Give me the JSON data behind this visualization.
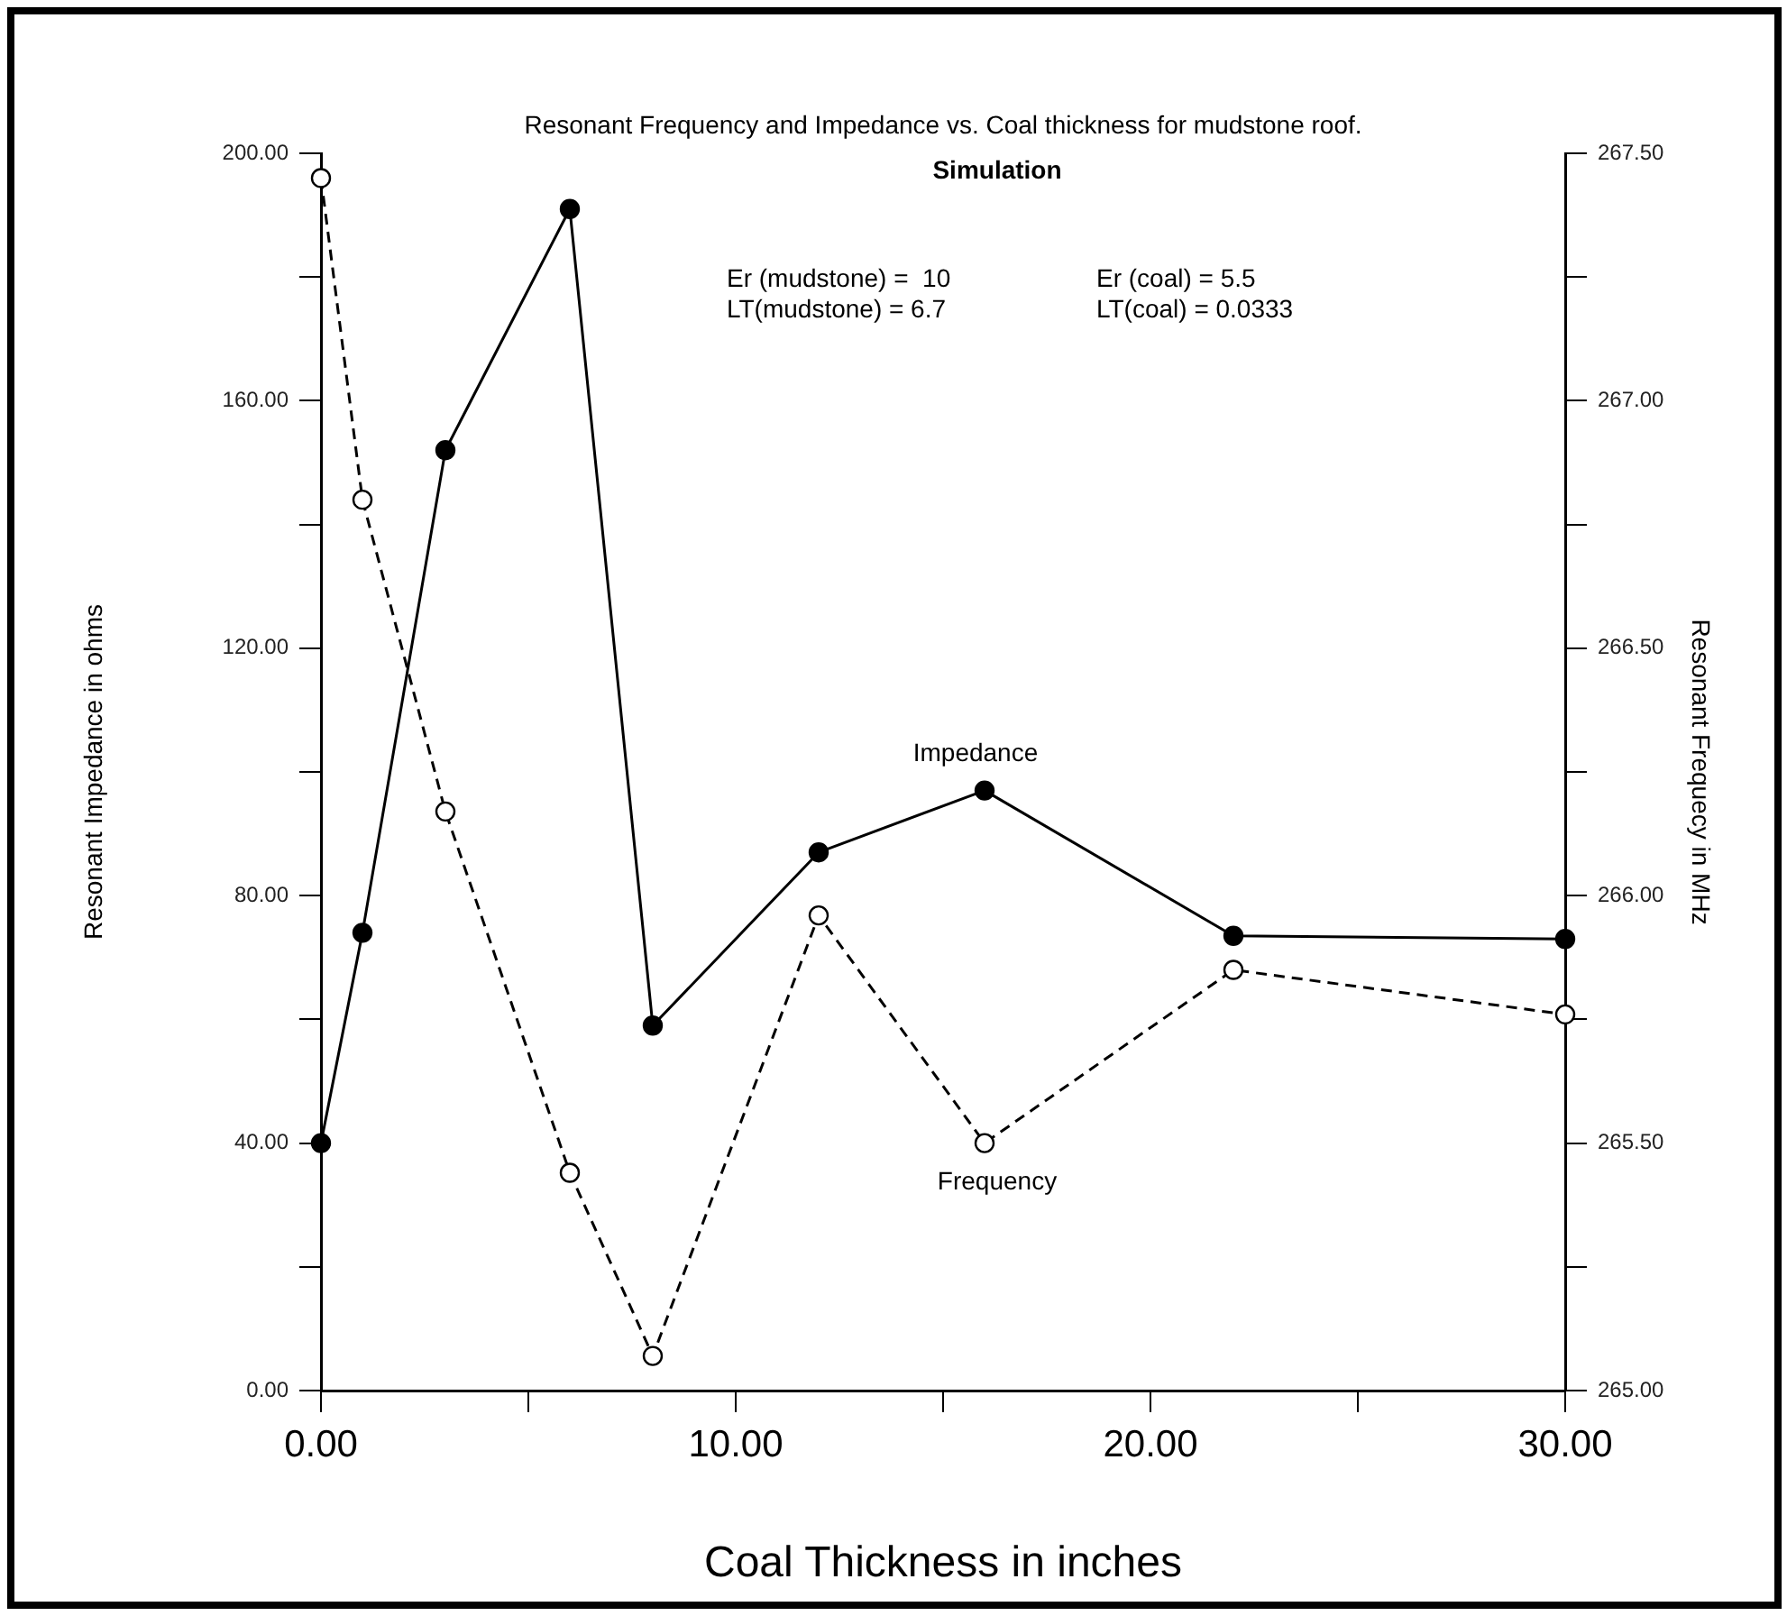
{
  "chart_data": {
    "type": "line",
    "title": "Resonant Frequency and Impedance vs. Coal thickness for mudstone roof.",
    "subtitle": "Simulation",
    "xlabel": "Coal Thickness in inches",
    "ylabel": "Resonant Impedance in ohms",
    "y2label": "Resonant Frequecy in MHz",
    "annotations": [
      "Er (mudstone) =  10",
      "LT(mudstone) = 6.7",
      "Er (coal) = 5.5",
      "LT(coal) = 0.0333"
    ],
    "x": [
      0,
      1,
      3,
      6,
      8,
      12,
      16,
      22,
      30
    ],
    "series": [
      {
        "name": "Impedance",
        "color": "#000000",
        "values": [
          40,
          74,
          152,
          191,
          59,
          87,
          97,
          73.5,
          73
        ],
        "line_style": "solid",
        "marker": "circle"
      },
      {
        "name": "Frequency",
        "color": "#000000",
        "axis": "y2",
        "values": [
          267.45,
          266.8,
          266.17,
          265.44,
          265.07,
          265.96,
          265.5,
          265.85,
          265.76
        ],
        "line_style": "dashed",
        "marker": "circle"
      }
    ],
    "xlim": [
      0,
      30
    ],
    "xticks": [
      {
        "value": 0,
        "label": "0.00"
      },
      {
        "value": 5,
        "label": null
      },
      {
        "value": 10,
        "label": "10.00"
      },
      {
        "value": 15,
        "label": null
      },
      {
        "value": 20,
        "label": "20.00"
      },
      {
        "value": 25,
        "label": null
      },
      {
        "value": 30,
        "label": "30.00"
      }
    ],
    "ylim": [
      0,
      200
    ],
    "yticks": [
      {
        "value": 0,
        "label": "0.00"
      },
      {
        "value": 20,
        "label": null
      },
      {
        "value": 40,
        "label": "40.00"
      },
      {
        "value": 60,
        "label": null
      },
      {
        "value": 80,
        "label": "80.00"
      },
      {
        "value": 100,
        "label": null
      },
      {
        "value": 120,
        "label": "120.00"
      },
      {
        "value": 140,
        "label": null
      },
      {
        "value": 160,
        "label": "160.00"
      },
      {
        "value": 180,
        "label": null
      },
      {
        "value": 200,
        "label": "200.00"
      }
    ],
    "y2lim": [
      265,
      267.5
    ],
    "y2ticks": [
      {
        "value": 265,
        "label": "265.00"
      },
      {
        "value": 265.25,
        "label": null
      },
      {
        "value": 265.5,
        "label": "265.50"
      },
      {
        "value": 265.75,
        "label": null
      },
      {
        "value": 266,
        "label": "266.00"
      },
      {
        "value": 266.25,
        "label": null
      },
      {
        "value": 266.5,
        "label": "266.50"
      },
      {
        "value": 266.75,
        "label": null
      },
      {
        "value": 267,
        "label": "267.00"
      },
      {
        "value": 267.25,
        "label": null
      },
      {
        "value": 267.5,
        "label": "267.50"
      }
    ],
    "grid": false,
    "legend": false
  }
}
